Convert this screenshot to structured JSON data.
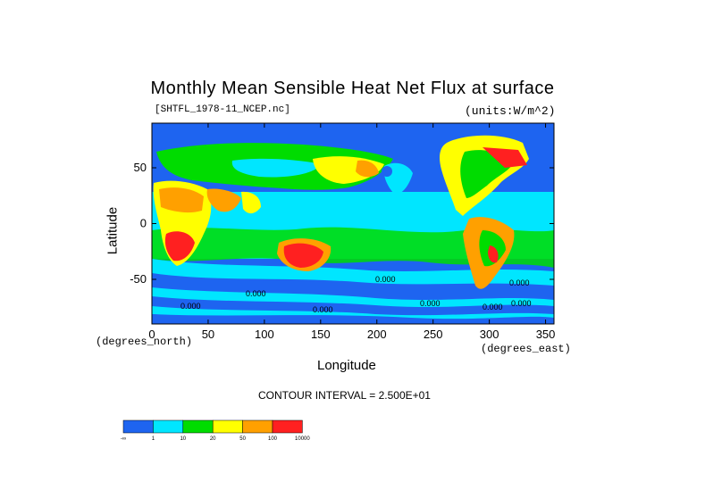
{
  "chart_data": {
    "type": "heatmap",
    "title": "Monthly Mean Sensible Heat Net Flux at surface",
    "dataset": "[SHTFL_1978-11_NCEP.nc]",
    "units": "(units:W/m^2)",
    "xlabel": "Longitude",
    "ylabel": "Latitude",
    "x_unit": "(degrees_north)",
    "y_unit": "(degrees_east)",
    "contour_interval": "CONTOUR INTERVAL = 2.500E+01",
    "xlim": [
      0,
      357.5
    ],
    "ylim": [
      -90,
      90
    ],
    "x_ticks": [
      0,
      50,
      100,
      150,
      200,
      250,
      300,
      350
    ],
    "y_ticks": [
      -50,
      0,
      50
    ],
    "colorbar": {
      "labels": [
        "-∞",
        "1",
        "10",
        "20",
        "50",
        "100",
        "10000"
      ],
      "colors": [
        "#1e64f0",
        "#00e6ff",
        "#00dc00",
        "#ffff00",
        "#ffa000",
        "#ff2020"
      ]
    },
    "contour_labels": [
      "0.000",
      "0.000",
      "0.000",
      "0.000",
      "0.000",
      "0.000",
      "0.000",
      "0.000"
    ]
  }
}
